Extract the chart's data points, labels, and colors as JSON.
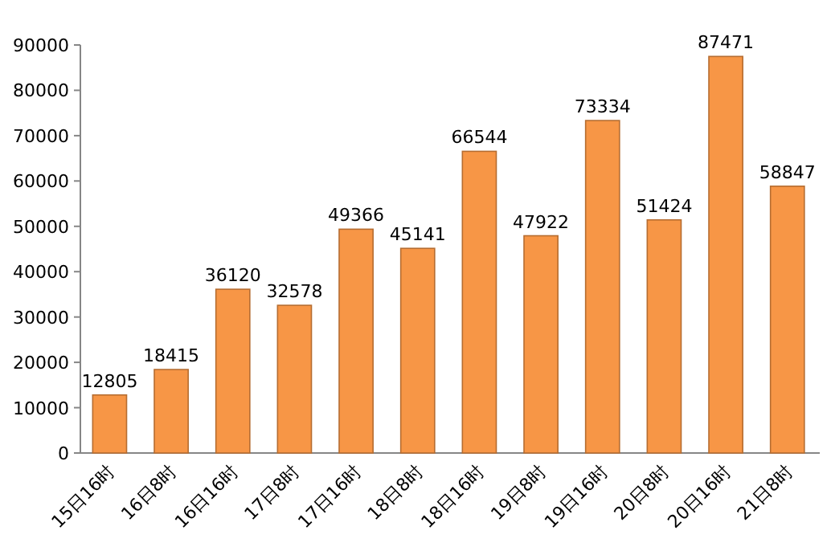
{
  "chart_data": {
    "type": "bar",
    "categories": [
      "15日16时",
      "16日8时",
      "16日16时",
      "17日8时",
      "17日16时",
      "18日8时",
      "18日16时",
      "19日8时",
      "19日16时",
      "20日8时",
      "20日16时",
      "21日8时"
    ],
    "values": [
      12805,
      18415,
      36120,
      32578,
      49366,
      45141,
      66544,
      47922,
      73334,
      51424,
      87471,
      58847
    ],
    "color": "#f79646",
    "ylim": [
      0,
      90000
    ],
    "yticks": [
      0,
      10000,
      20000,
      30000,
      40000,
      50000,
      60000,
      70000,
      80000,
      90000
    ],
    "data_labels": true
  }
}
